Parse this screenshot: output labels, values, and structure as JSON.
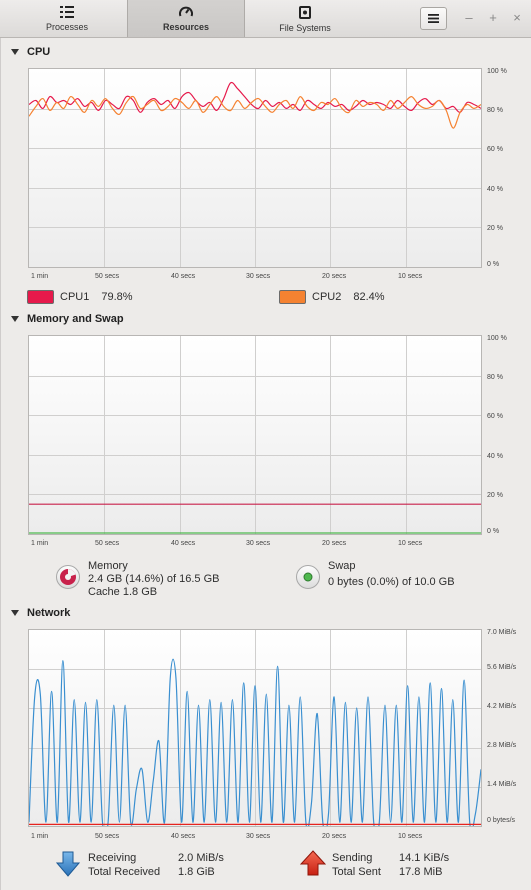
{
  "tabs": [
    {
      "label": "Processes",
      "icon": "list-icon",
      "active": false
    },
    {
      "label": "Resources",
      "icon": "gauge-icon",
      "active": true
    },
    {
      "label": "File Systems",
      "icon": "disk-icon",
      "active": false
    }
  ],
  "window_controls": {
    "minimize": "–",
    "maximize": "+",
    "close": "×"
  },
  "cpu": {
    "title": "CPU",
    "y_ticks": [
      "100 %",
      "80 %",
      "60 %",
      "40 %",
      "20 %",
      "0 %"
    ],
    "x_ticks": [
      "1 min",
      "50 secs",
      "40 secs",
      "30 secs",
      "20 secs",
      "10 secs"
    ],
    "cpu1_label": "CPU1",
    "cpu1_value": "79.8%",
    "cpu1_color": "#e6194b",
    "cpu2_label": "CPU2",
    "cpu2_value": "82.4%",
    "cpu2_color": "#f58231"
  },
  "memory": {
    "title": "Memory and Swap",
    "y_ticks": [
      "100 %",
      "80 %",
      "60 %",
      "40 %",
      "20 %",
      "0 %"
    ],
    "x_ticks": [
      "1 min",
      "50 secs",
      "40 secs",
      "30 secs",
      "20 secs",
      "10 secs"
    ],
    "mem_label": "Memory",
    "mem_value": "2.4 GB (14.6%) of 16.5 GB",
    "cache_value": "Cache 1.8 GB",
    "mem_color": "#c8214b",
    "swap_label": "Swap",
    "swap_value": "0 bytes (0.0%) of 10.0 GB",
    "swap_color": "#4eb84e"
  },
  "network": {
    "title": "Network",
    "y_ticks": [
      "7.0 MiB/s",
      "5.6 MiB/s",
      "4.2 MiB/s",
      "2.8 MiB/s",
      "1.4 MiB/s",
      "0 bytes/s"
    ],
    "x_ticks": [
      "1 min",
      "50 secs",
      "40 secs",
      "30 secs",
      "20 secs",
      "10 secs"
    ],
    "receiving_label": "Receiving",
    "receiving_value": "2.0 MiB/s",
    "total_received_label": "Total Received",
    "total_received_value": "1.8 GiB",
    "sending_label": "Sending",
    "sending_value": "14.1 KiB/s",
    "total_sent_label": "Total Sent",
    "total_sent_value": "17.8 MiB",
    "receive_color": "#3a8fd0",
    "send_color": "#e6231e"
  },
  "chart_data": [
    {
      "type": "line",
      "y_unit": "%",
      "ylim": [
        0,
        100
      ],
      "x_tick_labels": [
        "1 min",
        "50 secs",
        "40 secs",
        "30 secs",
        "20 secs",
        "10 secs"
      ],
      "series": [
        {
          "name": "CPU1",
          "values": [
            82,
            84,
            80,
            86,
            83,
            84,
            82,
            85,
            81,
            83,
            79,
            84,
            82,
            80,
            86,
            84,
            78,
            83,
            85,
            82,
            84,
            80,
            86,
            88,
            84,
            81,
            83,
            79,
            85,
            93,
            90,
            86,
            82,
            80,
            84,
            81,
            83,
            80,
            82,
            79,
            84,
            82,
            80,
            83,
            81,
            82,
            79,
            81,
            84,
            82,
            83,
            82,
            80,
            84,
            81,
            79,
            83,
            85,
            82,
            84,
            80,
            81,
            78,
            83,
            82,
            80
          ]
        },
        {
          "name": "CPU2",
          "values": [
            76,
            81,
            85,
            79,
            83,
            80,
            86,
            82,
            78,
            84,
            81,
            85,
            80,
            77,
            83,
            86,
            80,
            82,
            84,
            79,
            81,
            85,
            83,
            80,
            84,
            78,
            82,
            86,
            81,
            79,
            84,
            80,
            83,
            85,
            81,
            78,
            82,
            84,
            80,
            86,
            81,
            79,
            83,
            82,
            85,
            80,
            78,
            84,
            81,
            83,
            82,
            79,
            84,
            80,
            83,
            86,
            82,
            80,
            81,
            84,
            79,
            70,
            78,
            82,
            80,
            82
          ]
        }
      ]
    },
    {
      "type": "line",
      "y_unit": "%",
      "ylim": [
        0,
        100
      ],
      "x_tick_labels": [
        "1 min",
        "50 secs",
        "40 secs",
        "30 secs",
        "20 secs",
        "10 secs"
      ],
      "series": [
        {
          "name": "Memory",
          "values": [
            14.6,
            14.6,
            14.6,
            14.6,
            14.6,
            14.6,
            14.6,
            14.6,
            14.6,
            14.6,
            14.6,
            14.6
          ]
        },
        {
          "name": "Swap",
          "values": [
            0,
            0,
            0,
            0,
            0,
            0,
            0,
            0,
            0,
            0,
            0,
            0
          ]
        }
      ]
    },
    {
      "type": "line",
      "y_unit": "MiB/s",
      "ylim": [
        0,
        7.0
      ],
      "x_tick_labels": [
        "1 min",
        "50 secs",
        "40 secs",
        "30 secs",
        "20 secs",
        "10 secs"
      ],
      "series": [
        {
          "name": "Receiving",
          "values": [
            0.1,
            4.6,
            4.7,
            0.1,
            4.8,
            0.1,
            5.9,
            0.1,
            4.5,
            0.1,
            4.4,
            0.1,
            4.5,
            0.1,
            0.1,
            4.3,
            0.1,
            4.3,
            0.1,
            1.3,
            2.0,
            0.1,
            1.6,
            3.0,
            0.1,
            5.3,
            5.3,
            0.1,
            4.8,
            0.1,
            4.3,
            0.1,
            4.5,
            0.1,
            4.4,
            0.1,
            4.5,
            0.1,
            5.1,
            0.1,
            5.0,
            0.1,
            4.7,
            0.1,
            5.7,
            0.1,
            4.3,
            0.1,
            4.6,
            0.1,
            0.8,
            4.0,
            0.1,
            0.4,
            4.6,
            0.1,
            4.4,
            0.1,
            4.2,
            0.1,
            4.6,
            0.1,
            0.1,
            4.3,
            0.1,
            4.3,
            0.1,
            5.0,
            0.1,
            4.6,
            0.1,
            5.1,
            0.1,
            4.9,
            0.1,
            4.5,
            0.1,
            5.2,
            0.1,
            0.4,
            2.0
          ]
        },
        {
          "name": "Sending",
          "values": [
            0.02,
            0.02,
            0.02,
            0.02,
            0.02,
            0.02,
            0.02,
            0.02,
            0.02,
            0.02,
            0.02,
            0.02
          ]
        }
      ]
    }
  ]
}
